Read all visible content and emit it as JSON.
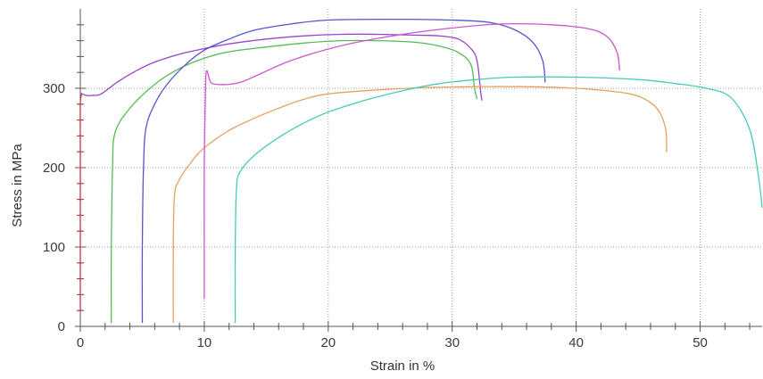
{
  "chart_data": {
    "type": "line",
    "title": "",
    "xlabel": "Strain in %",
    "ylabel": "Stress in MPa",
    "xlim": [
      0,
      55
    ],
    "ylim": [
      0,
      390
    ],
    "x_ticks": [
      0,
      10,
      20,
      30,
      40,
      50
    ],
    "y_ticks": [
      0,
      100,
      200,
      300
    ],
    "grid": "dotted, at labeled ticks",
    "legend": "none",
    "series": [
      {
        "color": "#cc3344",
        "points": [
          [
            0.0,
            20
          ],
          [
            0.0,
            80
          ],
          [
            0.0,
            150
          ],
          [
            0.0,
            220
          ],
          [
            0.0,
            280
          ],
          [
            0.1,
            292
          ]
        ]
      },
      {
        "color": "#9944cc",
        "points": [
          [
            0.0,
            294
          ],
          [
            0.5,
            291
          ],
          [
            1.0,
            291
          ],
          [
            1.7,
            293
          ],
          [
            3.0,
            308
          ],
          [
            4.5,
            322
          ],
          [
            6.0,
            333
          ],
          [
            8.0,
            343
          ],
          [
            10.0,
            350
          ],
          [
            12.0,
            356
          ],
          [
            15.0,
            362
          ],
          [
            18.0,
            366
          ],
          [
            21.0,
            368
          ],
          [
            24.0,
            368
          ],
          [
            27.0,
            367
          ],
          [
            29.0,
            366
          ],
          [
            30.5,
            362
          ],
          [
            31.5,
            350
          ],
          [
            32.0,
            335
          ],
          [
            32.3,
            295
          ],
          [
            32.4,
            285
          ]
        ]
      },
      {
        "color": "#55bb55",
        "points": [
          [
            2.5,
            5
          ],
          [
            2.5,
            100
          ],
          [
            2.6,
            200
          ],
          [
            2.8,
            244
          ],
          [
            4.0,
            275
          ],
          [
            6.0,
            305
          ],
          [
            8.0,
            325
          ],
          [
            10.0,
            338
          ],
          [
            12.0,
            346
          ],
          [
            15.0,
            352
          ],
          [
            18.0,
            357
          ],
          [
            21.0,
            360
          ],
          [
            24.0,
            360
          ],
          [
            27.0,
            358
          ],
          [
            29.0,
            353
          ],
          [
            30.5,
            345
          ],
          [
            31.5,
            330
          ],
          [
            31.8,
            300
          ],
          [
            32.0,
            287
          ]
        ]
      },
      {
        "color": "#5555cc",
        "points": [
          [
            5.0,
            5
          ],
          [
            5.0,
            100
          ],
          [
            5.1,
            200
          ],
          [
            5.3,
            250
          ],
          [
            6.0,
            280
          ],
          [
            7.0,
            305
          ],
          [
            8.5,
            330
          ],
          [
            10.0,
            348
          ],
          [
            12.0,
            362
          ],
          [
            14.0,
            373
          ],
          [
            17.0,
            381
          ],
          [
            20.0,
            386
          ],
          [
            25.0,
            387
          ],
          [
            30.0,
            386
          ],
          [
            33.0,
            383
          ],
          [
            35.0,
            374
          ],
          [
            36.5,
            358
          ],
          [
            37.3,
            335
          ],
          [
            37.5,
            308
          ]
        ]
      },
      {
        "color": "#e8a060",
        "points": [
          [
            7.5,
            5
          ],
          [
            7.5,
            100
          ],
          [
            7.6,
            165
          ],
          [
            8.0,
            185
          ],
          [
            9.0,
            208
          ],
          [
            10.0,
            225
          ],
          [
            12.0,
            247
          ],
          [
            14.0,
            262
          ],
          [
            16.0,
            275
          ],
          [
            18.0,
            286
          ],
          [
            20.0,
            293
          ],
          [
            24.0,
            298
          ],
          [
            28.0,
            301
          ],
          [
            32.0,
            302
          ],
          [
            36.0,
            302
          ],
          [
            40.0,
            300
          ],
          [
            43.0,
            296
          ],
          [
            45.0,
            290
          ],
          [
            46.5,
            275
          ],
          [
            47.2,
            250
          ],
          [
            47.3,
            220
          ]
        ]
      },
      {
        "color": "#cc55cc",
        "points": [
          [
            10.0,
            35
          ],
          [
            10.0,
            100
          ],
          [
            10.0,
            200
          ],
          [
            10.1,
            300
          ],
          [
            10.2,
            322
          ],
          [
            10.5,
            308
          ],
          [
            11.0,
            305
          ],
          [
            12.0,
            305
          ],
          [
            13.0,
            308
          ],
          [
            14.5,
            318
          ],
          [
            16.5,
            332
          ],
          [
            19.0,
            345
          ],
          [
            22.0,
            357
          ],
          [
            26.0,
            368
          ],
          [
            30.0,
            376
          ],
          [
            34.0,
            381
          ],
          [
            38.0,
            380
          ],
          [
            41.0,
            375
          ],
          [
            42.5,
            365
          ],
          [
            43.3,
            345
          ],
          [
            43.5,
            323
          ]
        ]
      },
      {
        "color": "#44ccbb",
        "points": [
          [
            12.5,
            5
          ],
          [
            12.5,
            100
          ],
          [
            12.6,
            175
          ],
          [
            12.9,
            195
          ],
          [
            14.0,
            215
          ],
          [
            16.0,
            238
          ],
          [
            18.0,
            256
          ],
          [
            20.0,
            270
          ],
          [
            23.0,
            285
          ],
          [
            26.0,
            297
          ],
          [
            29.0,
            306
          ],
          [
            32.0,
            311
          ],
          [
            35.0,
            314
          ],
          [
            40.0,
            314
          ],
          [
            45.0,
            311
          ],
          [
            48.0,
            306
          ],
          [
            50.5,
            300
          ],
          [
            52.5,
            288
          ],
          [
            54.0,
            248
          ],
          [
            54.7,
            190
          ],
          [
            55.0,
            150
          ]
        ]
      }
    ]
  }
}
